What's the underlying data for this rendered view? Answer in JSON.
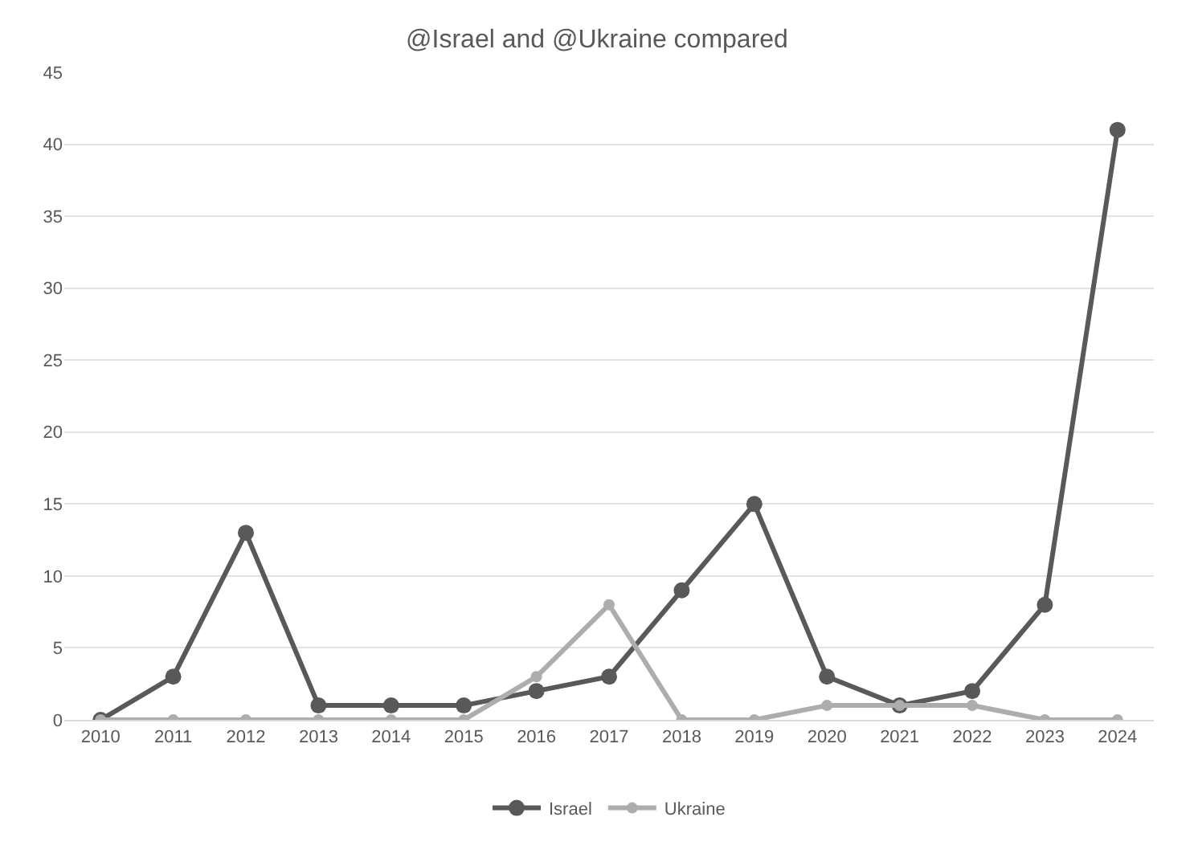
{
  "chart_data": {
    "type": "line",
    "title": "@Israel and @Ukraine compared",
    "categories": [
      "2010",
      "2011",
      "2012",
      "2013",
      "2014",
      "2015",
      "2016",
      "2017",
      "2018",
      "2019",
      "2020",
      "2021",
      "2022",
      "2023",
      "2024"
    ],
    "series": [
      {
        "name": "Israel",
        "color": "#595959",
        "values": [
          0,
          3,
          13,
          1,
          1,
          1,
          2,
          3,
          9,
          15,
          3,
          1,
          2,
          8,
          41
        ]
      },
      {
        "name": "Ukraine",
        "color": "#adadad",
        "values": [
          0,
          0,
          0,
          0,
          0,
          0,
          3,
          8,
          0,
          0,
          1,
          1,
          1,
          0,
          0
        ]
      }
    ],
    "ylim": [
      0,
      45
    ],
    "yticks": [
      0,
      5,
      10,
      15,
      20,
      25,
      30,
      35,
      40,
      45
    ],
    "grid": "y",
    "legend": "bottom",
    "marker": "circle",
    "line_style": "solid"
  }
}
